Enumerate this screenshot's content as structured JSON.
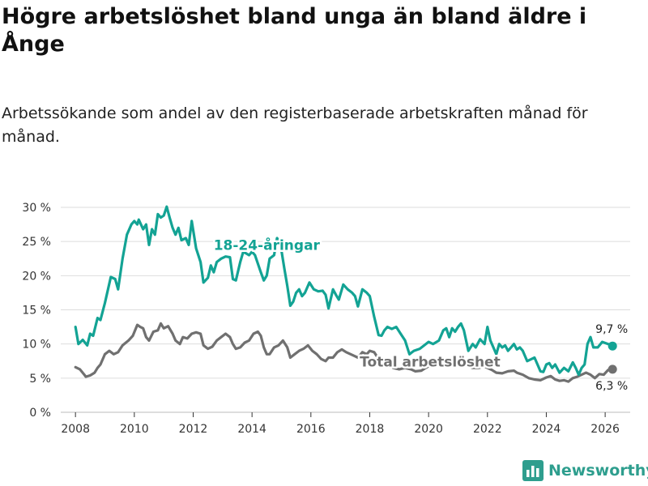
{
  "title": "Högre arbetslöshet bland unga än bland äldre i Ånge",
  "subtitle": "Arbetssökande som andel av den registerbaserade arbetskraften månad för månad.",
  "brand": {
    "name": "Newsworthy",
    "icon": "bar-chart-logo-icon"
  },
  "colors": {
    "youth": "#13a394",
    "total": "#707070",
    "grid": "#dddddd",
    "axis": "#333333"
  },
  "chart_data": {
    "type": "line",
    "title": "Högre arbetslöshet bland unga än bland äldre i Ånge",
    "xlabel": "",
    "ylabel": "",
    "xlim": [
      2007.5,
      2026.85
    ],
    "ylim": [
      0,
      30
    ],
    "x_ticks": [
      2008,
      2010,
      2012,
      2014,
      2016,
      2018,
      2020,
      2022,
      2024,
      2026
    ],
    "y_ticks": [
      {
        "value": 0,
        "label": "0 %"
      },
      {
        "value": 5,
        "label": "5 %"
      },
      {
        "value": 10,
        "label": "10 %"
      },
      {
        "value": 15,
        "label": "15 %"
      },
      {
        "value": 20,
        "label": "20 %"
      },
      {
        "value": 25,
        "label": "25 %"
      },
      {
        "value": 30,
        "label": "30 %"
      }
    ],
    "grid": true,
    "series": [
      {
        "name": "18-24-åringar",
        "color": "#13a394",
        "end_label": "9,7 %",
        "points": [
          [
            2008.0,
            12.5
          ],
          [
            2008.1,
            10.0
          ],
          [
            2008.25,
            10.6
          ],
          [
            2008.4,
            9.8
          ],
          [
            2008.5,
            11.5
          ],
          [
            2008.6,
            11.2
          ],
          [
            2008.75,
            13.8
          ],
          [
            2008.85,
            13.5
          ],
          [
            2009.0,
            16.0
          ],
          [
            2009.2,
            19.8
          ],
          [
            2009.35,
            19.5
          ],
          [
            2009.45,
            18.0
          ],
          [
            2009.6,
            22.5
          ],
          [
            2009.75,
            26.0
          ],
          [
            2009.9,
            27.5
          ],
          [
            2010.0,
            28.0
          ],
          [
            2010.1,
            27.5
          ],
          [
            2010.15,
            28.2
          ],
          [
            2010.3,
            26.8
          ],
          [
            2010.4,
            27.5
          ],
          [
            2010.5,
            24.5
          ],
          [
            2010.6,
            26.8
          ],
          [
            2010.7,
            26.0
          ],
          [
            2010.8,
            29.0
          ],
          [
            2010.9,
            28.5
          ],
          [
            2011.0,
            28.8
          ],
          [
            2011.1,
            30.1
          ],
          [
            2011.2,
            28.5
          ],
          [
            2011.3,
            27.0
          ],
          [
            2011.4,
            26.0
          ],
          [
            2011.5,
            27.0
          ],
          [
            2011.6,
            25.2
          ],
          [
            2011.75,
            25.5
          ],
          [
            2011.85,
            24.5
          ],
          [
            2011.95,
            28.0
          ],
          [
            2012.1,
            24.0
          ],
          [
            2012.25,
            22.0
          ],
          [
            2012.35,
            19.0
          ],
          [
            2012.5,
            19.7
          ],
          [
            2012.6,
            21.5
          ],
          [
            2012.7,
            20.5
          ],
          [
            2012.8,
            22.0
          ],
          [
            2012.95,
            22.5
          ],
          [
            2013.1,
            22.8
          ],
          [
            2013.25,
            22.7
          ],
          [
            2013.35,
            19.5
          ],
          [
            2013.45,
            19.3
          ],
          [
            2013.6,
            22.0
          ],
          [
            2013.7,
            23.5
          ],
          [
            2013.9,
            23.0
          ],
          [
            2014.0,
            23.5
          ],
          [
            2014.1,
            23.0
          ],
          [
            2014.3,
            20.5
          ],
          [
            2014.4,
            19.3
          ],
          [
            2014.5,
            20.0
          ],
          [
            2014.6,
            22.5
          ],
          [
            2014.75,
            23.0
          ],
          [
            2014.85,
            25.5
          ],
          [
            2014.95,
            25.0
          ],
          [
            2015.1,
            21.0
          ],
          [
            2015.2,
            18.5
          ],
          [
            2015.3,
            15.6
          ],
          [
            2015.4,
            16.2
          ],
          [
            2015.5,
            17.5
          ],
          [
            2015.6,
            18.0
          ],
          [
            2015.7,
            17.0
          ],
          [
            2015.8,
            17.5
          ],
          [
            2015.95,
            19.0
          ],
          [
            2016.1,
            18.0
          ],
          [
            2016.25,
            17.7
          ],
          [
            2016.4,
            17.8
          ],
          [
            2016.5,
            17.2
          ],
          [
            2016.6,
            15.2
          ],
          [
            2016.75,
            18.0
          ],
          [
            2016.85,
            17.2
          ],
          [
            2016.95,
            16.5
          ],
          [
            2017.1,
            18.7
          ],
          [
            2017.25,
            18.0
          ],
          [
            2017.4,
            17.5
          ],
          [
            2017.5,
            17.0
          ],
          [
            2017.6,
            15.5
          ],
          [
            2017.75,
            18.0
          ],
          [
            2017.9,
            17.5
          ],
          [
            2018.0,
            17.0
          ],
          [
            2018.15,
            14.0
          ],
          [
            2018.3,
            11.3
          ],
          [
            2018.4,
            11.2
          ],
          [
            2018.5,
            12.0
          ],
          [
            2018.6,
            12.5
          ],
          [
            2018.75,
            12.2
          ],
          [
            2018.9,
            12.5
          ],
          [
            2019.05,
            11.5
          ],
          [
            2019.2,
            10.5
          ],
          [
            2019.35,
            8.5
          ],
          [
            2019.5,
            9.0
          ],
          [
            2019.7,
            9.3
          ],
          [
            2019.85,
            9.8
          ],
          [
            2020.0,
            10.3
          ],
          [
            2020.15,
            10.0
          ],
          [
            2020.35,
            10.5
          ],
          [
            2020.5,
            12.0
          ],
          [
            2020.6,
            12.3
          ],
          [
            2020.7,
            11.0
          ],
          [
            2020.8,
            12.3
          ],
          [
            2020.9,
            11.8
          ],
          [
            2021.0,
            12.5
          ],
          [
            2021.1,
            13.0
          ],
          [
            2021.2,
            12.0
          ],
          [
            2021.35,
            9.0
          ],
          [
            2021.5,
            10.0
          ],
          [
            2021.6,
            9.5
          ],
          [
            2021.75,
            10.7
          ],
          [
            2021.9,
            10.0
          ],
          [
            2022.0,
            12.5
          ],
          [
            2022.1,
            10.5
          ],
          [
            2022.2,
            9.5
          ],
          [
            2022.3,
            8.5
          ],
          [
            2022.4,
            10.0
          ],
          [
            2022.5,
            9.5
          ],
          [
            2022.6,
            9.8
          ],
          [
            2022.7,
            9.0
          ],
          [
            2022.8,
            9.5
          ],
          [
            2022.9,
            10.0
          ],
          [
            2023.0,
            9.2
          ],
          [
            2023.1,
            9.5
          ],
          [
            2023.2,
            9.0
          ],
          [
            2023.35,
            7.5
          ],
          [
            2023.5,
            7.8
          ],
          [
            2023.6,
            8.0
          ],
          [
            2023.7,
            7.0
          ],
          [
            2023.8,
            6.0
          ],
          [
            2023.9,
            5.9
          ],
          [
            2024.0,
            7.0
          ],
          [
            2024.1,
            7.2
          ],
          [
            2024.2,
            6.5
          ],
          [
            2024.3,
            7.0
          ],
          [
            2024.45,
            5.8
          ],
          [
            2024.6,
            6.5
          ],
          [
            2024.75,
            6.0
          ],
          [
            2024.9,
            7.3
          ],
          [
            2025.0,
            6.5
          ],
          [
            2025.1,
            5.5
          ],
          [
            2025.2,
            6.5
          ],
          [
            2025.3,
            7.0
          ],
          [
            2025.4,
            10.0
          ],
          [
            2025.5,
            11.0
          ],
          [
            2025.6,
            9.5
          ],
          [
            2025.75,
            9.5
          ],
          [
            2025.9,
            10.3
          ],
          [
            2026.1,
            10.0
          ],
          [
            2026.25,
            9.7
          ]
        ]
      },
      {
        "name": "Total arbetslöshet",
        "color": "#707070",
        "end_label": "6,3 %",
        "points": [
          [
            2008.0,
            6.6
          ],
          [
            2008.15,
            6.3
          ],
          [
            2008.3,
            5.5
          ],
          [
            2008.35,
            5.2
          ],
          [
            2008.5,
            5.4
          ],
          [
            2008.65,
            5.8
          ],
          [
            2008.75,
            6.5
          ],
          [
            2008.85,
            7.0
          ],
          [
            2009.0,
            8.5
          ],
          [
            2009.15,
            9.0
          ],
          [
            2009.3,
            8.5
          ],
          [
            2009.45,
            8.8
          ],
          [
            2009.6,
            9.8
          ],
          [
            2009.8,
            10.5
          ],
          [
            2009.95,
            11.2
          ],
          [
            2010.1,
            12.8
          ],
          [
            2010.2,
            12.5
          ],
          [
            2010.3,
            12.3
          ],
          [
            2010.4,
            11.0
          ],
          [
            2010.5,
            10.5
          ],
          [
            2010.65,
            11.8
          ],
          [
            2010.8,
            12.0
          ],
          [
            2010.9,
            13.0
          ],
          [
            2011.0,
            12.3
          ],
          [
            2011.15,
            12.6
          ],
          [
            2011.3,
            11.5
          ],
          [
            2011.4,
            10.5
          ],
          [
            2011.55,
            10.0
          ],
          [
            2011.65,
            11.0
          ],
          [
            2011.8,
            10.8
          ],
          [
            2011.95,
            11.5
          ],
          [
            2012.1,
            11.7
          ],
          [
            2012.25,
            11.5
          ],
          [
            2012.35,
            9.8
          ],
          [
            2012.5,
            9.3
          ],
          [
            2012.65,
            9.6
          ],
          [
            2012.8,
            10.5
          ],
          [
            2012.95,
            11.0
          ],
          [
            2013.1,
            11.5
          ],
          [
            2013.25,
            11.0
          ],
          [
            2013.35,
            10.0
          ],
          [
            2013.45,
            9.3
          ],
          [
            2013.6,
            9.5
          ],
          [
            2013.75,
            10.2
          ],
          [
            2013.9,
            10.5
          ],
          [
            2014.05,
            11.5
          ],
          [
            2014.2,
            11.8
          ],
          [
            2014.3,
            11.2
          ],
          [
            2014.4,
            9.5
          ],
          [
            2014.5,
            8.5
          ],
          [
            2014.6,
            8.5
          ],
          [
            2014.75,
            9.5
          ],
          [
            2014.9,
            9.8
          ],
          [
            2015.05,
            10.5
          ],
          [
            2015.2,
            9.5
          ],
          [
            2015.3,
            8.0
          ],
          [
            2015.45,
            8.5
          ],
          [
            2015.6,
            9.0
          ],
          [
            2015.75,
            9.3
          ],
          [
            2015.9,
            9.8
          ],
          [
            2016.05,
            9.0
          ],
          [
            2016.2,
            8.5
          ],
          [
            2016.35,
            7.8
          ],
          [
            2016.5,
            7.5
          ],
          [
            2016.6,
            8.0
          ],
          [
            2016.75,
            8.0
          ],
          [
            2016.9,
            8.8
          ],
          [
            2017.05,
            9.2
          ],
          [
            2017.2,
            8.8
          ],
          [
            2017.35,
            8.5
          ],
          [
            2017.5,
            8.2
          ],
          [
            2017.6,
            8.0
          ],
          [
            2017.75,
            8.8
          ],
          [
            2017.9,
            8.5
          ],
          [
            2018.0,
            9.0
          ],
          [
            2018.15,
            8.8
          ],
          [
            2018.3,
            7.8
          ],
          [
            2018.5,
            7.3
          ],
          [
            2018.65,
            7.0
          ],
          [
            2018.8,
            6.5
          ],
          [
            2019.0,
            6.3
          ],
          [
            2019.2,
            6.5
          ],
          [
            2019.4,
            6.3
          ],
          [
            2019.55,
            6.0
          ],
          [
            2019.75,
            6.1
          ],
          [
            2019.9,
            6.5
          ],
          [
            2020.1,
            7.0
          ],
          [
            2020.3,
            7.3
          ],
          [
            2020.5,
            7.8
          ],
          [
            2020.7,
            7.5
          ],
          [
            2020.9,
            7.2
          ],
          [
            2021.1,
            7.0
          ],
          [
            2021.3,
            6.8
          ],
          [
            2021.5,
            6.5
          ],
          [
            2021.7,
            6.5
          ],
          [
            2021.9,
            6.7
          ],
          [
            2022.0,
            6.5
          ],
          [
            2022.15,
            6.2
          ],
          [
            2022.3,
            5.8
          ],
          [
            2022.5,
            5.7
          ],
          [
            2022.7,
            6.0
          ],
          [
            2022.9,
            6.1
          ],
          [
            2023.0,
            5.8
          ],
          [
            2023.2,
            5.5
          ],
          [
            2023.4,
            5.0
          ],
          [
            2023.6,
            4.8
          ],
          [
            2023.8,
            4.7
          ],
          [
            2024.0,
            5.1
          ],
          [
            2024.15,
            5.3
          ],
          [
            2024.3,
            4.8
          ],
          [
            2024.45,
            4.6
          ],
          [
            2024.6,
            4.7
          ],
          [
            2024.75,
            4.5
          ],
          [
            2024.9,
            5.0
          ],
          [
            2025.05,
            5.2
          ],
          [
            2025.2,
            5.5
          ],
          [
            2025.35,
            5.8
          ],
          [
            2025.5,
            5.5
          ],
          [
            2025.65,
            5.0
          ],
          [
            2025.8,
            5.6
          ],
          [
            2025.95,
            5.5
          ],
          [
            2026.1,
            6.2
          ],
          [
            2026.25,
            6.3
          ]
        ]
      }
    ],
    "annotations": [
      {
        "text": "18-24-åringar",
        "series": "18-24-åringar",
        "x": 2014.5,
        "y": 24.5
      },
      {
        "text": "Total arbetslöshet",
        "series": "Total arbetslöshet",
        "x": 2020.05,
        "y": 7.4
      }
    ]
  }
}
